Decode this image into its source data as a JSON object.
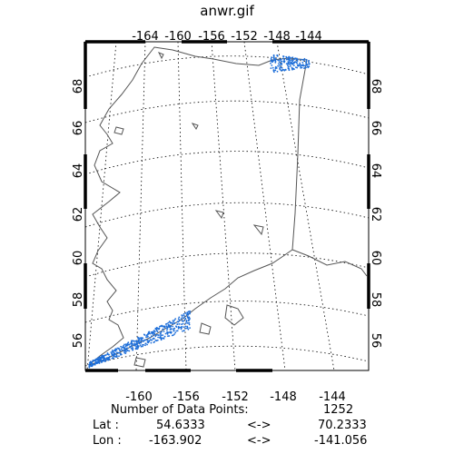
{
  "title": "anwr.gif",
  "top_ticks": [
    "-164",
    "-160",
    "-156",
    "-152",
    "-148",
    "-144"
  ],
  "bottom_ticks": [
    "-160",
    "-156",
    "-152",
    "-148",
    "-144"
  ],
  "left_ticks": [
    "68",
    "66",
    "64",
    "62",
    "60",
    "58",
    "56"
  ],
  "right_ticks": [
    "68",
    "66",
    "64",
    "62",
    "60",
    "58",
    "56"
  ],
  "info": {
    "count_label": "Number of Data Points:",
    "count_value": "1252",
    "lat_label": "Lat :",
    "lat_min": "54.6333",
    "lat_max": "70.2333",
    "lon_label": "Lon :",
    "lon_min": "-163.902",
    "lon_max": "-141.056",
    "range_arrow": "<->"
  },
  "colors": {
    "frame": "#000000",
    "coastline": "#555555",
    "grid": "#000000",
    "data_points": "#1e6fd9"
  },
  "map_data": {
    "projection": "azimuthal (Alaska)",
    "lat_range": [
      54.6333,
      70.2333
    ],
    "lon_range": [
      -163.902,
      -141.056
    ],
    "data_point_count": 1252,
    "data_clusters": [
      "north-slope (ANWR coastal plain)",
      "southwest Alaska Peninsula"
    ]
  }
}
